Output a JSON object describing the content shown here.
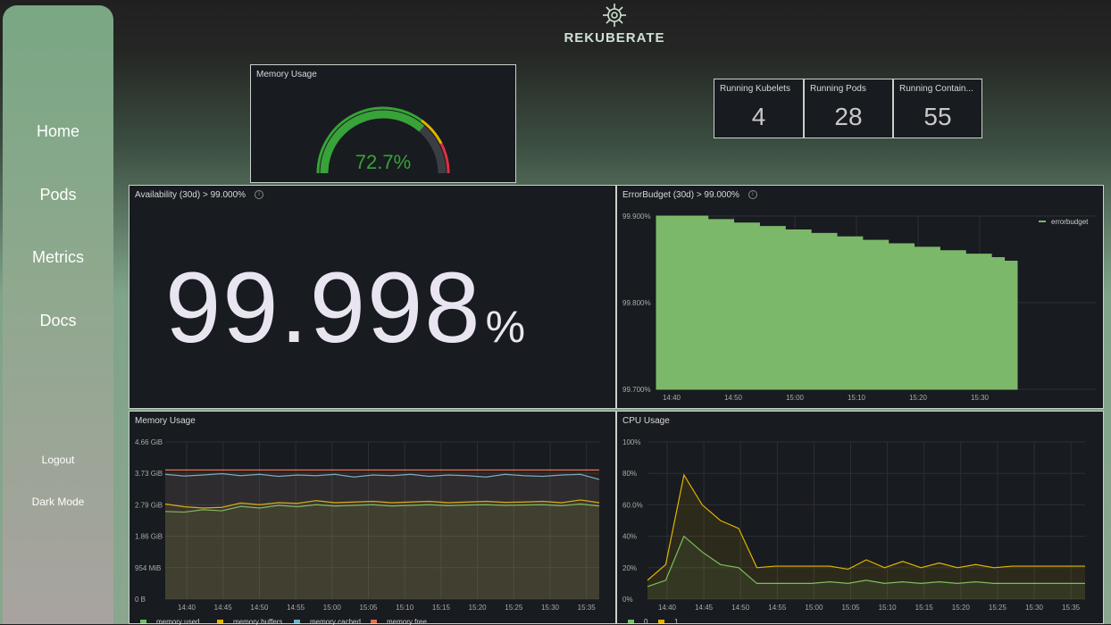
{
  "brand": {
    "name": "REKUBERATE",
    "icon": "virus-logo-icon"
  },
  "sidebar": {
    "items": [
      {
        "label": "Home"
      },
      {
        "label": "Pods"
      },
      {
        "label": "Metrics"
      },
      {
        "label": "Docs"
      },
      {
        "label": "Logout"
      },
      {
        "label": "Dark Mode"
      }
    ]
  },
  "memory_gauge": {
    "title": "Memory Usage",
    "value_text": "72.7%",
    "value": 72.7,
    "color": "#37a338"
  },
  "stats": [
    {
      "title": "Running Kubelets",
      "value": "4"
    },
    {
      "title": "Running Pods",
      "value": "28"
    },
    {
      "title": "Running Contain...",
      "value": "55"
    }
  ],
  "availability": {
    "title": "Availability (30d) > 99.000%",
    "number": "99.998",
    "unit": "%"
  },
  "error_budget": {
    "title": "ErrorBudget (30d) > 99.000%",
    "legend": "errorbudget",
    "color": "#7cb86a",
    "chart_data": {
      "type": "area",
      "x": [
        "14:37",
        "14:40",
        "14:42",
        "14:44",
        "14:46",
        "14:48",
        "14:50",
        "14:52",
        "14:54",
        "14:56",
        "14:58",
        "15:00",
        "15:02",
        "15:04",
        "15:06",
        "15:08",
        "15:10",
        "15:12",
        "15:14",
        "15:16",
        "15:18",
        "15:20",
        "15:22",
        "15:24",
        "15:26",
        "15:28",
        "15:30",
        "15:32",
        "15:34"
      ],
      "values": [
        99.9,
        99.9,
        99.9,
        99.9,
        99.896,
        99.896,
        99.892,
        99.892,
        99.888,
        99.888,
        99.884,
        99.884,
        99.88,
        99.88,
        99.876,
        99.876,
        99.872,
        99.872,
        99.868,
        99.868,
        99.864,
        99.864,
        99.86,
        99.86,
        99.856,
        99.856,
        99.852,
        99.848,
        99.848
      ],
      "y_ticks": [
        "99.900%",
        "99.800%",
        "99.700%"
      ],
      "x_ticks": [
        "14:40",
        "14:50",
        "15:00",
        "15:10",
        "15:20",
        "15:30"
      ],
      "ylim": [
        99.7,
        99.9
      ]
    }
  },
  "memory_chart": {
    "title": "Memory Usage",
    "chart_data": {
      "type": "line",
      "y_ticks": [
        "4.66 GiB",
        "3.73 GiB",
        "2.79 GiB",
        "1.86 GiB",
        "954 MiB",
        "0 B"
      ],
      "x_ticks": [
        "14:40",
        "14:45",
        "14:50",
        "14:55",
        "15:00",
        "15:05",
        "15:10",
        "15:15",
        "15:20",
        "15:25",
        "15:30",
        "15:35"
      ],
      "ylim": [
        0,
        4.66
      ],
      "series": [
        {
          "name": "memory used",
          "color": "#73bf69",
          "values": [
            2.6,
            2.58,
            2.65,
            2.62,
            2.75,
            2.7,
            2.78,
            2.74,
            2.8,
            2.76,
            2.78,
            2.8,
            2.76,
            2.78,
            2.8,
            2.77,
            2.79,
            2.8,
            2.78,
            2.79,
            2.8,
            2.77,
            2.82,
            2.76
          ]
        },
        {
          "name": "memory buffers",
          "color": "#e0b400",
          "values": [
            2.82,
            2.74,
            2.7,
            2.72,
            2.85,
            2.8,
            2.86,
            2.84,
            2.92,
            2.86,
            2.88,
            2.9,
            2.86,
            2.88,
            2.9,
            2.86,
            2.88,
            2.9,
            2.87,
            2.88,
            2.9,
            2.86,
            2.94,
            2.86
          ]
        },
        {
          "name": "memory cached",
          "color": "#6fb2c7",
          "values": [
            3.7,
            3.65,
            3.68,
            3.72,
            3.66,
            3.7,
            3.64,
            3.68,
            3.66,
            3.7,
            3.62,
            3.68,
            3.66,
            3.7,
            3.64,
            3.68,
            3.66,
            3.62,
            3.7,
            3.66,
            3.64,
            3.68,
            3.7,
            3.55
          ]
        },
        {
          "name": "memory free",
          "color": "#e07050",
          "values": [
            3.83,
            3.83,
            3.83,
            3.83,
            3.83,
            3.83,
            3.83,
            3.83,
            3.83,
            3.83,
            3.83,
            3.83,
            3.83,
            3.83,
            3.83,
            3.83,
            3.83,
            3.83,
            3.83,
            3.83,
            3.83,
            3.83,
            3.83,
            3.83
          ]
        }
      ]
    }
  },
  "cpu_chart": {
    "title": "CPU Usage",
    "chart_data": {
      "type": "line",
      "y_ticks": [
        "100%",
        "80%",
        "60.0%",
        "40%",
        "20%",
        "0%"
      ],
      "x_ticks": [
        "14:40",
        "14:45",
        "14:50",
        "14:55",
        "15:00",
        "15:05",
        "15:10",
        "15:15",
        "15:20",
        "15:25",
        "15:30",
        "15:35"
      ],
      "ylim": [
        0,
        100
      ],
      "series": [
        {
          "name": "0",
          "color": "#73bf69",
          "values": [
            8,
            12,
            40,
            30,
            22,
            20,
            10,
            10,
            10,
            10,
            11,
            10,
            12,
            10,
            11,
            10,
            11,
            10,
            11,
            10,
            10,
            10,
            10,
            10,
            10
          ]
        },
        {
          "name": "1",
          "color": "#e0b400",
          "values": [
            12,
            22,
            79,
            60,
            50,
            45,
            20,
            21,
            21,
            21,
            21,
            19,
            25,
            20,
            24,
            20,
            23,
            20,
            22,
            20,
            21,
            21,
            21,
            21,
            21
          ]
        }
      ]
    }
  }
}
